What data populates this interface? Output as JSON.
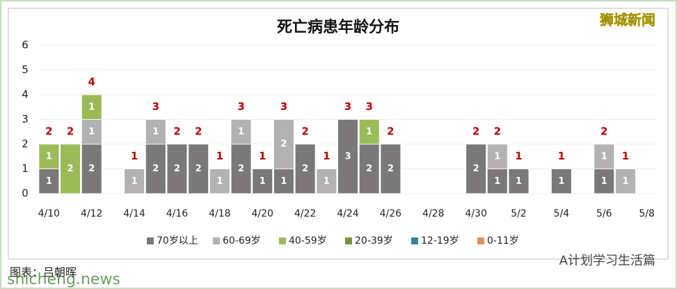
{
  "chart_data": {
    "type": "stacked-bar",
    "title": "死亡病患年龄分布",
    "categories": [
      "4/10",
      null,
      "4/12",
      null,
      "4/14",
      null,
      "4/16",
      null,
      "4/18",
      null,
      "4/20",
      null,
      "4/22",
      null,
      "4/24",
      null,
      "4/26",
      null,
      "4/28",
      null,
      "4/30",
      null,
      "5/2",
      null,
      "5/4",
      null,
      "5/6",
      null,
      "5/8"
    ],
    "series": [
      {
        "name": "70岁以上",
        "color": "#7a7878",
        "values": [
          1,
          null,
          2,
          null,
          null,
          2,
          2,
          2,
          null,
          2,
          1,
          1,
          2,
          null,
          3,
          2,
          2,
          null,
          null,
          null,
          2,
          1,
          1,
          null,
          1,
          null,
          1,
          null,
          null
        ]
      },
      {
        "name": "60-69岁",
        "color": "#b3b1b1",
        "values": [
          null,
          null,
          1,
          null,
          1,
          1,
          null,
          null,
          1,
          1,
          null,
          2,
          null,
          1,
          null,
          null,
          null,
          null,
          null,
          null,
          null,
          1,
          null,
          null,
          null,
          null,
          1,
          1,
          null
        ]
      },
      {
        "name": "40-59岁",
        "color": "#9bbb59",
        "values": [
          1,
          2,
          1,
          null,
          null,
          null,
          null,
          null,
          null,
          null,
          null,
          null,
          null,
          null,
          null,
          1,
          null,
          null,
          null,
          null,
          null,
          null,
          null,
          null,
          null,
          null,
          null,
          null,
          null
        ]
      },
      {
        "name": "20-39岁",
        "color": "#77933c",
        "values": [
          null,
          null,
          null,
          null,
          null,
          null,
          null,
          null,
          null,
          null,
          null,
          null,
          null,
          null,
          null,
          null,
          null,
          null,
          null,
          null,
          null,
          null,
          null,
          null,
          null,
          null,
          null,
          null,
          null
        ]
      },
      {
        "name": "12-19岁",
        "color": "#31859c",
        "values": [
          null,
          null,
          null,
          null,
          null,
          null,
          null,
          null,
          null,
          null,
          null,
          null,
          null,
          null,
          null,
          null,
          null,
          null,
          null,
          null,
          null,
          null,
          null,
          null,
          null,
          null,
          null,
          null,
          null
        ]
      },
      {
        "name": "0-11岁",
        "color": "#e0915a",
        "values": [
          null,
          null,
          null,
          null,
          null,
          null,
          null,
          null,
          null,
          null,
          null,
          null,
          null,
          null,
          null,
          null,
          null,
          null,
          null,
          null,
          null,
          null,
          null,
          null,
          null,
          null,
          null,
          null,
          null
        ]
      }
    ],
    "totals": [
      2,
      2,
      4,
      null,
      1,
      3,
      2,
      2,
      1,
      3,
      1,
      3,
      2,
      1,
      3,
      3,
      2,
      null,
      null,
      null,
      2,
      2,
      1,
      null,
      1,
      null,
      2,
      1,
      null
    ],
    "total_color": "#c00000",
    "ylim": [
      0,
      6
    ],
    "yticks": [
      0,
      1,
      2,
      3,
      4,
      5,
      6
    ],
    "grid": true,
    "legend": "bottom"
  },
  "watermark": "狮城新闻",
  "credit": "图表：吕朝晖",
  "site": "shicheng.news",
  "account": "A计划学习生活篇"
}
